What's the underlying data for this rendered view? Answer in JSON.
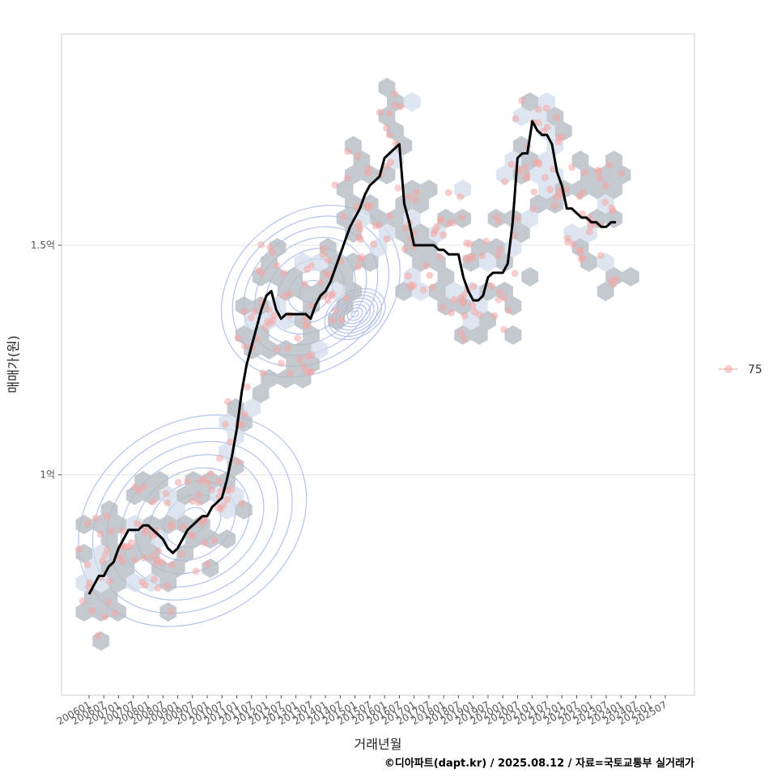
{
  "chart_data": {
    "type": "line",
    "xlabel": "거래년월",
    "ylabel": "매매가(원)",
    "caption": "©디아파트(dapt.kr) / 2025.08.12 / 자료=국토교통부 실거래가",
    "x_ticks": [
      "200601",
      "200607",
      "200701",
      "200707",
      "200801",
      "200807",
      "200901",
      "200907",
      "201001",
      "201007",
      "201101",
      "201107",
      "201201",
      "201207",
      "201301",
      "201307",
      "201401",
      "201407",
      "201501",
      "201507",
      "201601",
      "201607",
      "201701",
      "201707",
      "201801",
      "201807",
      "201901",
      "201907",
      "202001",
      "202007",
      "202101",
      "202107",
      "202201",
      "202207",
      "202301",
      "202307",
      "202401",
      "202407",
      "202501",
      "202507"
    ],
    "y_ticks": [
      {
        "value": 100000000,
        "label": "1억"
      },
      {
        "value": 150000000,
        "label": "1.5억"
      }
    ],
    "ylim": [
      52000000,
      196000000
    ],
    "legend": {
      "label": "75",
      "placement": "right"
    },
    "colors": {
      "line": "#000000",
      "points": "#f4a6a6",
      "hex": "#b4bcc2",
      "hex_light": "#cfdbea",
      "contour": "#b3c3ef",
      "grid": "#e6e6e6",
      "frame": "#cccccc"
    },
    "series": [
      {
        "values": [
          [
            "200601",
            74
          ],
          [
            "200603",
            76
          ],
          [
            "200605",
            78
          ],
          [
            "200607",
            78
          ],
          [
            "200609",
            80
          ],
          [
            "200611",
            81
          ],
          [
            "200701",
            84
          ],
          [
            "200703",
            86
          ],
          [
            "200705",
            88
          ],
          [
            "200707",
            88
          ],
          [
            "200709",
            88
          ],
          [
            "200711",
            89
          ],
          [
            "200801",
            89
          ],
          [
            "200803",
            88
          ],
          [
            "200805",
            87
          ],
          [
            "200807",
            86
          ],
          [
            "200809",
            84
          ],
          [
            "200811",
            83
          ],
          [
            "200901",
            84
          ],
          [
            "200903",
            86
          ],
          [
            "200905",
            88
          ],
          [
            "200907",
            89
          ],
          [
            "200909",
            90
          ],
          [
            "200911",
            91
          ],
          [
            "201001",
            91
          ],
          [
            "201003",
            93
          ],
          [
            "201005",
            94
          ],
          [
            "201007",
            95
          ],
          [
            "201009",
            99
          ],
          [
            "201011",
            104
          ],
          [
            "201101",
            110
          ],
          [
            "201103",
            118
          ],
          [
            "201105",
            124
          ],
          [
            "201107",
            128
          ],
          [
            "201109",
            132
          ],
          [
            "201111",
            136
          ],
          [
            "201201",
            139
          ],
          [
            "201203",
            140
          ],
          [
            "201205",
            136
          ],
          [
            "201207",
            134
          ],
          [
            "201209",
            135
          ],
          [
            "201211",
            135
          ],
          [
            "201301",
            135
          ],
          [
            "201303",
            135
          ],
          [
            "201305",
            135
          ],
          [
            "201307",
            134
          ],
          [
            "201309",
            137
          ],
          [
            "201311",
            139
          ],
          [
            "201401",
            140
          ],
          [
            "201403",
            142
          ],
          [
            "201405",
            145
          ],
          [
            "201407",
            148
          ],
          [
            "201409",
            151
          ],
          [
            "201411",
            154
          ],
          [
            "201501",
            156
          ],
          [
            "201503",
            158
          ],
          [
            "201505",
            161
          ],
          [
            "201507",
            163
          ],
          [
            "201509",
            164
          ],
          [
            "201511",
            165
          ],
          [
            "201601",
            169
          ],
          [
            "201603",
            170
          ],
          [
            "201605",
            171
          ],
          [
            "201607",
            172
          ],
          [
            "201609",
            159
          ],
          [
            "201611",
            155
          ],
          [
            "201701",
            150
          ],
          [
            "201703",
            150
          ],
          [
            "201705",
            150
          ],
          [
            "201707",
            150
          ],
          [
            "201709",
            150
          ],
          [
            "201711",
            149
          ],
          [
            "201801",
            149
          ],
          [
            "201803",
            148
          ],
          [
            "201805",
            148
          ],
          [
            "201807",
            148
          ],
          [
            "201809",
            143
          ],
          [
            "201811",
            140
          ],
          [
            "201901",
            138
          ],
          [
            "201903",
            138
          ],
          [
            "201905",
            139
          ],
          [
            "201907",
            143
          ],
          [
            "201909",
            144
          ],
          [
            "201911",
            144
          ],
          [
            "202001",
            144
          ],
          [
            "202003",
            146
          ],
          [
            "202005",
            155
          ],
          [
            "202007",
            169
          ],
          [
            "202009",
            170
          ],
          [
            "202011",
            170
          ],
          [
            "202101",
            177
          ],
          [
            "202103",
            175
          ],
          [
            "202105",
            174
          ],
          [
            "202107",
            174
          ],
          [
            "202109",
            172
          ],
          [
            "202111",
            166
          ],
          [
            "202201",
            163
          ],
          [
            "202203",
            158
          ],
          [
            "202205",
            158
          ],
          [
            "202207",
            157
          ],
          [
            "202209",
            156
          ],
          [
            "202211",
            156
          ],
          [
            "202301",
            155
          ],
          [
            "202303",
            155
          ],
          [
            "202305",
            154
          ],
          [
            "202307",
            154
          ],
          [
            "202309",
            155
          ],
          [
            "202311",
            155
          ]
        ]
      }
    ],
    "contour_levels": 8,
    "density_peaks": [
      {
        "x": "200907",
        "y": 90000000
      },
      {
        "x": "201307",
        "y": 140000000
      },
      {
        "x": "201501",
        "y": 135000000
      }
    ]
  }
}
